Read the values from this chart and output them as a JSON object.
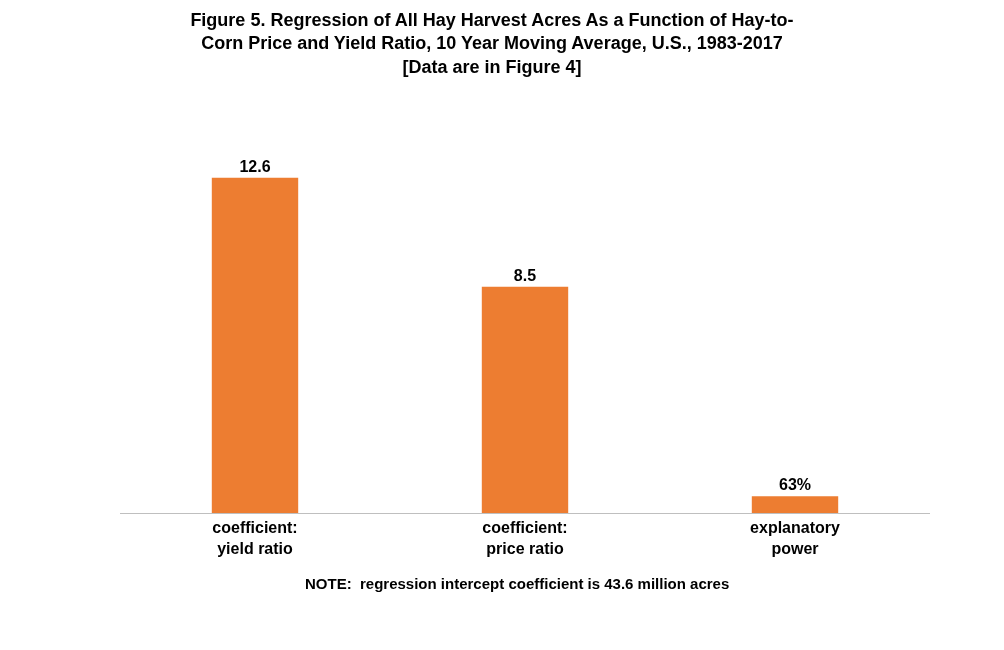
{
  "chart_data": {
    "type": "bar",
    "title": "Figure 5. Regression of All Hay Harvest Acres As a Function of Hay-to-\nCorn Price and Yield Ratio, 10 Year Moving Average, U.S., 1983-2017\n[Data are in Figure 4]",
    "categories": [
      "coefficient:\nyield ratio",
      "coefficient:\nprice ratio",
      "explanatory\npower"
    ],
    "values": [
      12.6,
      8.5,
      0.63
    ],
    "value_labels": [
      "12.6",
      "8.5",
      "63%"
    ],
    "color": "#ed7d31",
    "annotations": [
      "NOTE:  regression intercept coefficient is 43.6 million acres"
    ]
  }
}
